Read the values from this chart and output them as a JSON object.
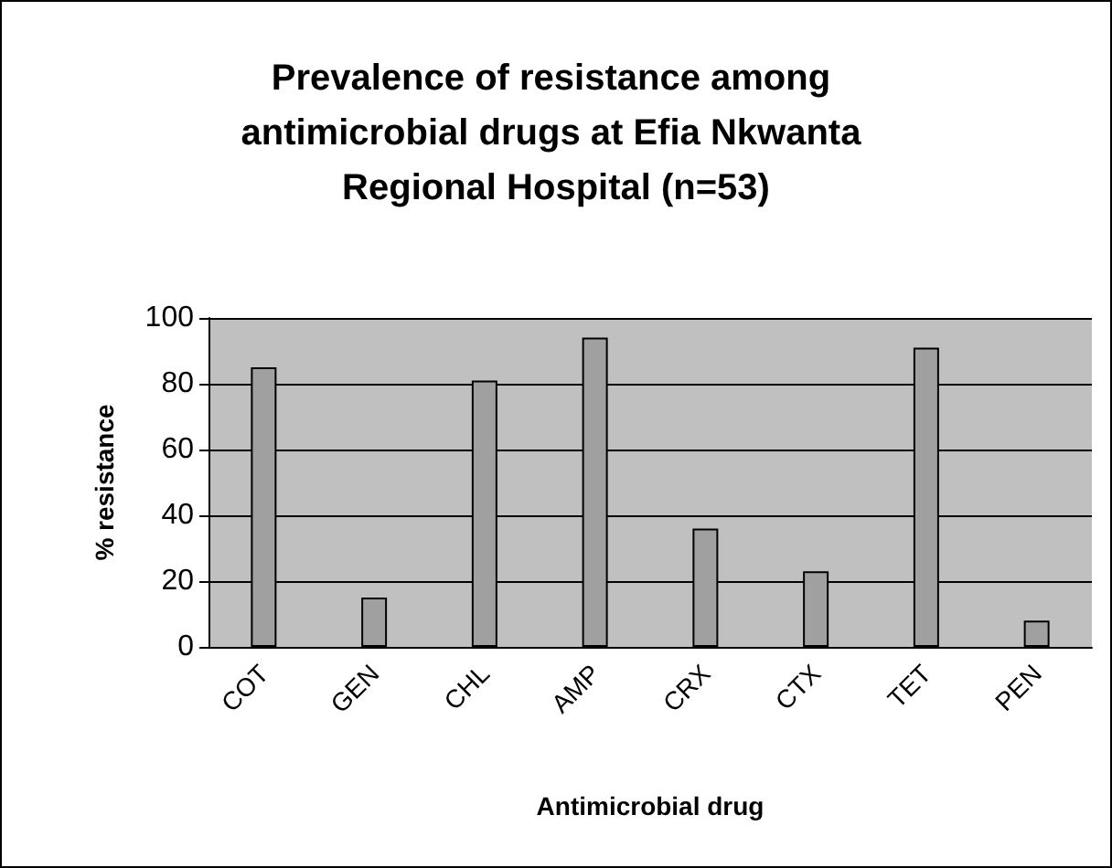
{
  "chart_data": {
    "type": "bar",
    "title": "Prevalence of resistance among antimicrobial drugs at Efia Nkwanta Regional Hospital (n=53)",
    "xlabel": "Antimicrobial drug",
    "ylabel": "% resistance",
    "categories": [
      "COT",
      "GEN",
      "CHL",
      "AMP",
      "CRX",
      "CTX",
      "TET",
      "PEN"
    ],
    "values": [
      85,
      15,
      81,
      94,
      36,
      23,
      91,
      8
    ],
    "color": "#a0a0a0",
    "ylim": [
      0,
      100
    ],
    "yticks": [
      0,
      20,
      40,
      60,
      80,
      100
    ],
    "grid": "y"
  }
}
